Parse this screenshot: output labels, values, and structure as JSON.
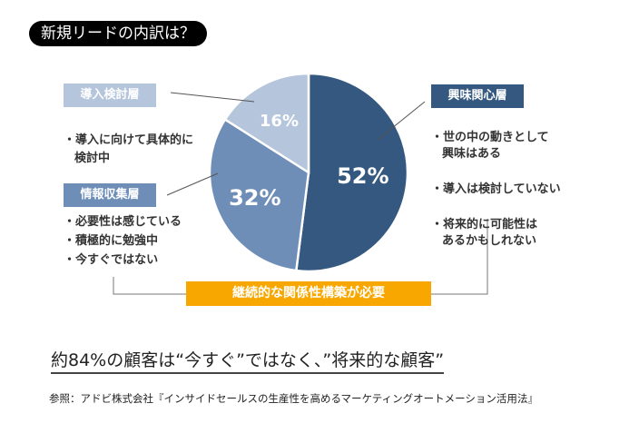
{
  "title": "新規リードの内訳は？",
  "chart_data": {
    "type": "pie",
    "start": "top, clockwise",
    "slices": [
      {
        "name": "興味関心層",
        "value": 52,
        "label": "52%",
        "color": "#34587f"
      },
      {
        "name": "情報収集層",
        "value": 32,
        "label": "32%",
        "color": "#6e8eb8"
      },
      {
        "name": "導入検討層",
        "value": 16,
        "label": "16%",
        "color": "#b4c5dc"
      }
    ]
  },
  "segments": {
    "interest": {
      "name": "興味関心層",
      "bullets": [
        "・世の中の動きとして\n興味はある",
        "・導入は検討していない",
        "・将来的に可能性は\nあるかもしれない"
      ]
    },
    "info": {
      "name": "情報収集層",
      "bullets": [
        "・必要性は感じている",
        "・積極的に勉強中",
        "・今すぐではない"
      ]
    },
    "consider": {
      "name": "導入検討層",
      "bullets": [
        "・導入に向けて具体的に\n検討中"
      ]
    }
  },
  "callout": "継続的な関係性構築が必要",
  "conclusion": "約84%の顧客は“今すぐ”ではなく、”将来的な顧客”",
  "reference": "参照：アドビ株式会社『インサイドセールスの生産性を高めるマーケティングオートメーション活用法』"
}
